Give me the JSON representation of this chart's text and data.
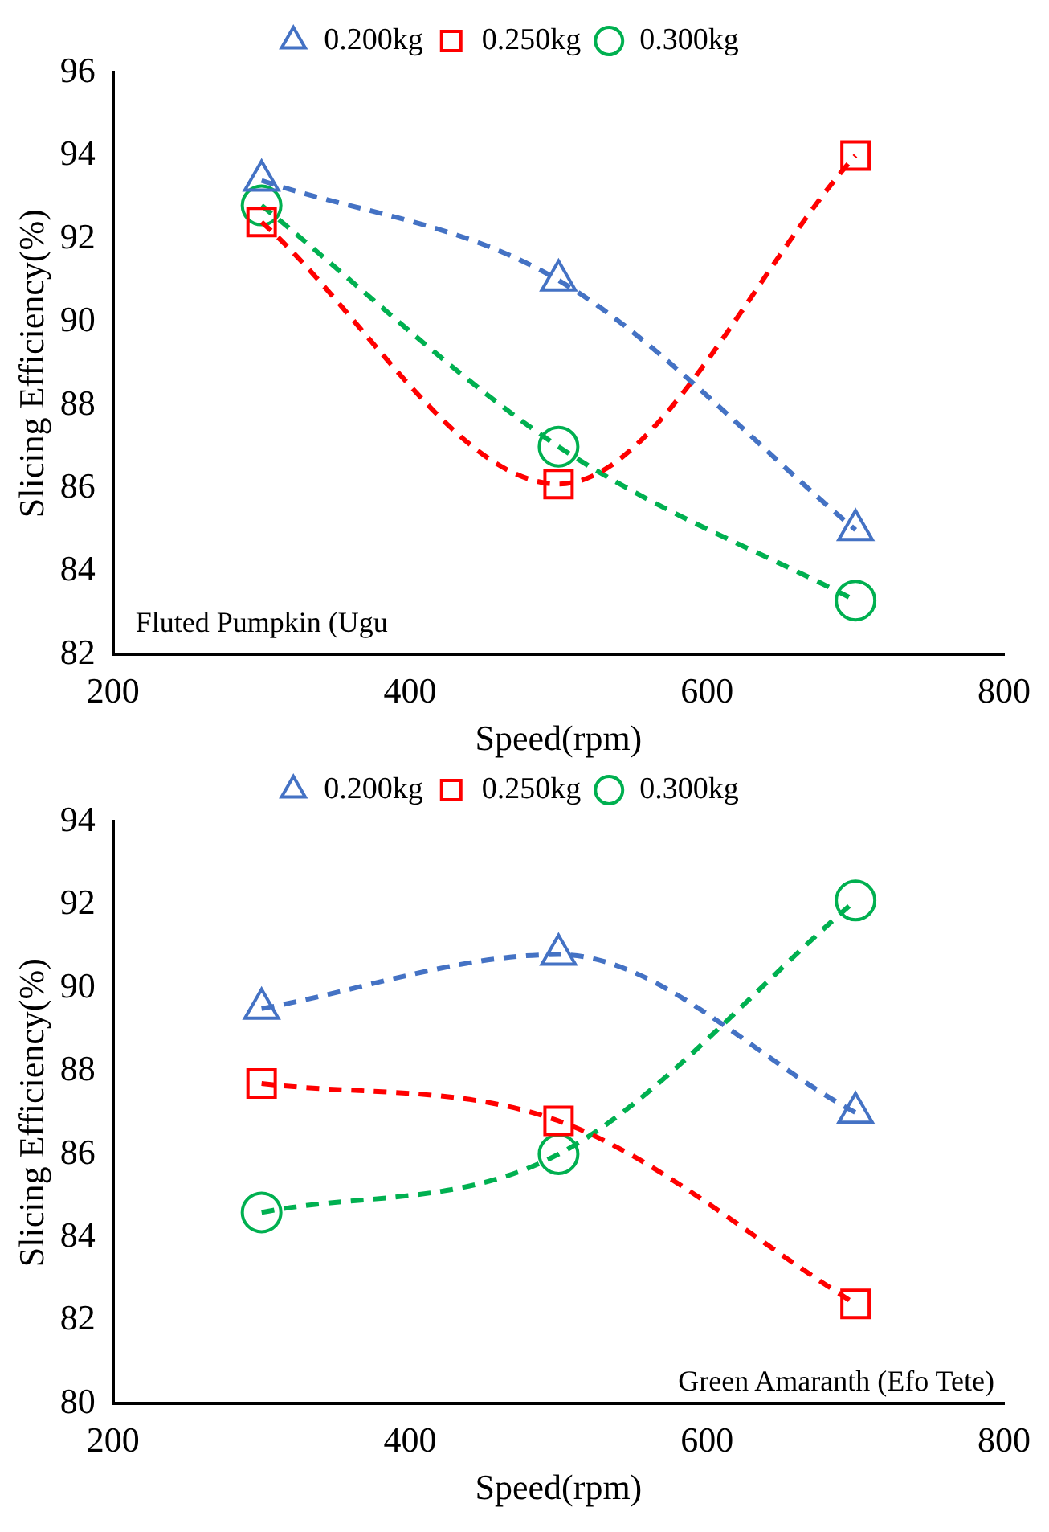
{
  "chart_data": [
    {
      "type": "line",
      "xlabel": "Speed(rpm)",
      "ylabel": "Slicing Efficiency(%)",
      "x": [
        300,
        500,
        700
      ],
      "xlim": [
        200,
        800
      ],
      "xticks": [
        200,
        400,
        600,
        800
      ],
      "ylim": [
        82,
        96
      ],
      "yticks": [
        82,
        84,
        86,
        88,
        90,
        92,
        94,
        96
      ],
      "grid": false,
      "legend": "top",
      "line_style": "dashed",
      "annotations": [
        "Fluted Pumpkin (Ugu"
      ],
      "series": [
        {
          "name": "0.200kg",
          "color": "#4472c4",
          "marker": "triangle",
          "values": [
            93.4,
            91.0,
            85.0
          ]
        },
        {
          "name": "0.250kg",
          "color": "#ff0000",
          "marker": "square",
          "values": [
            92.4,
            86.1,
            94.0
          ]
        },
        {
          "name": "0.300kg",
          "color": "#00b050",
          "marker": "circle",
          "values": [
            92.8,
            87.0,
            83.3
          ]
        }
      ]
    },
    {
      "type": "line",
      "xlabel": "Speed(rpm)",
      "ylabel": "Slicing Efficiency(%)",
      "x": [
        300,
        500,
        700
      ],
      "xlim": [
        200,
        800
      ],
      "xticks": [
        200,
        400,
        600,
        800
      ],
      "ylim": [
        80,
        94
      ],
      "yticks": [
        80,
        82,
        84,
        86,
        88,
        90,
        92,
        94
      ],
      "grid": false,
      "legend": "top",
      "line_style": "dashed",
      "annotations": [
        "Green Amaranth (Efo Tete)"
      ],
      "series": [
        {
          "name": "0.200kg",
          "color": "#4472c4",
          "marker": "triangle",
          "values": [
            89.5,
            90.8,
            87.0
          ]
        },
        {
          "name": "0.250kg",
          "color": "#ff0000",
          "marker": "square",
          "values": [
            87.7,
            86.8,
            82.4
          ]
        },
        {
          "name": "0.300kg",
          "color": "#00b050",
          "marker": "circle",
          "values": [
            84.6,
            86.0,
            92.1
          ]
        }
      ]
    }
  ]
}
